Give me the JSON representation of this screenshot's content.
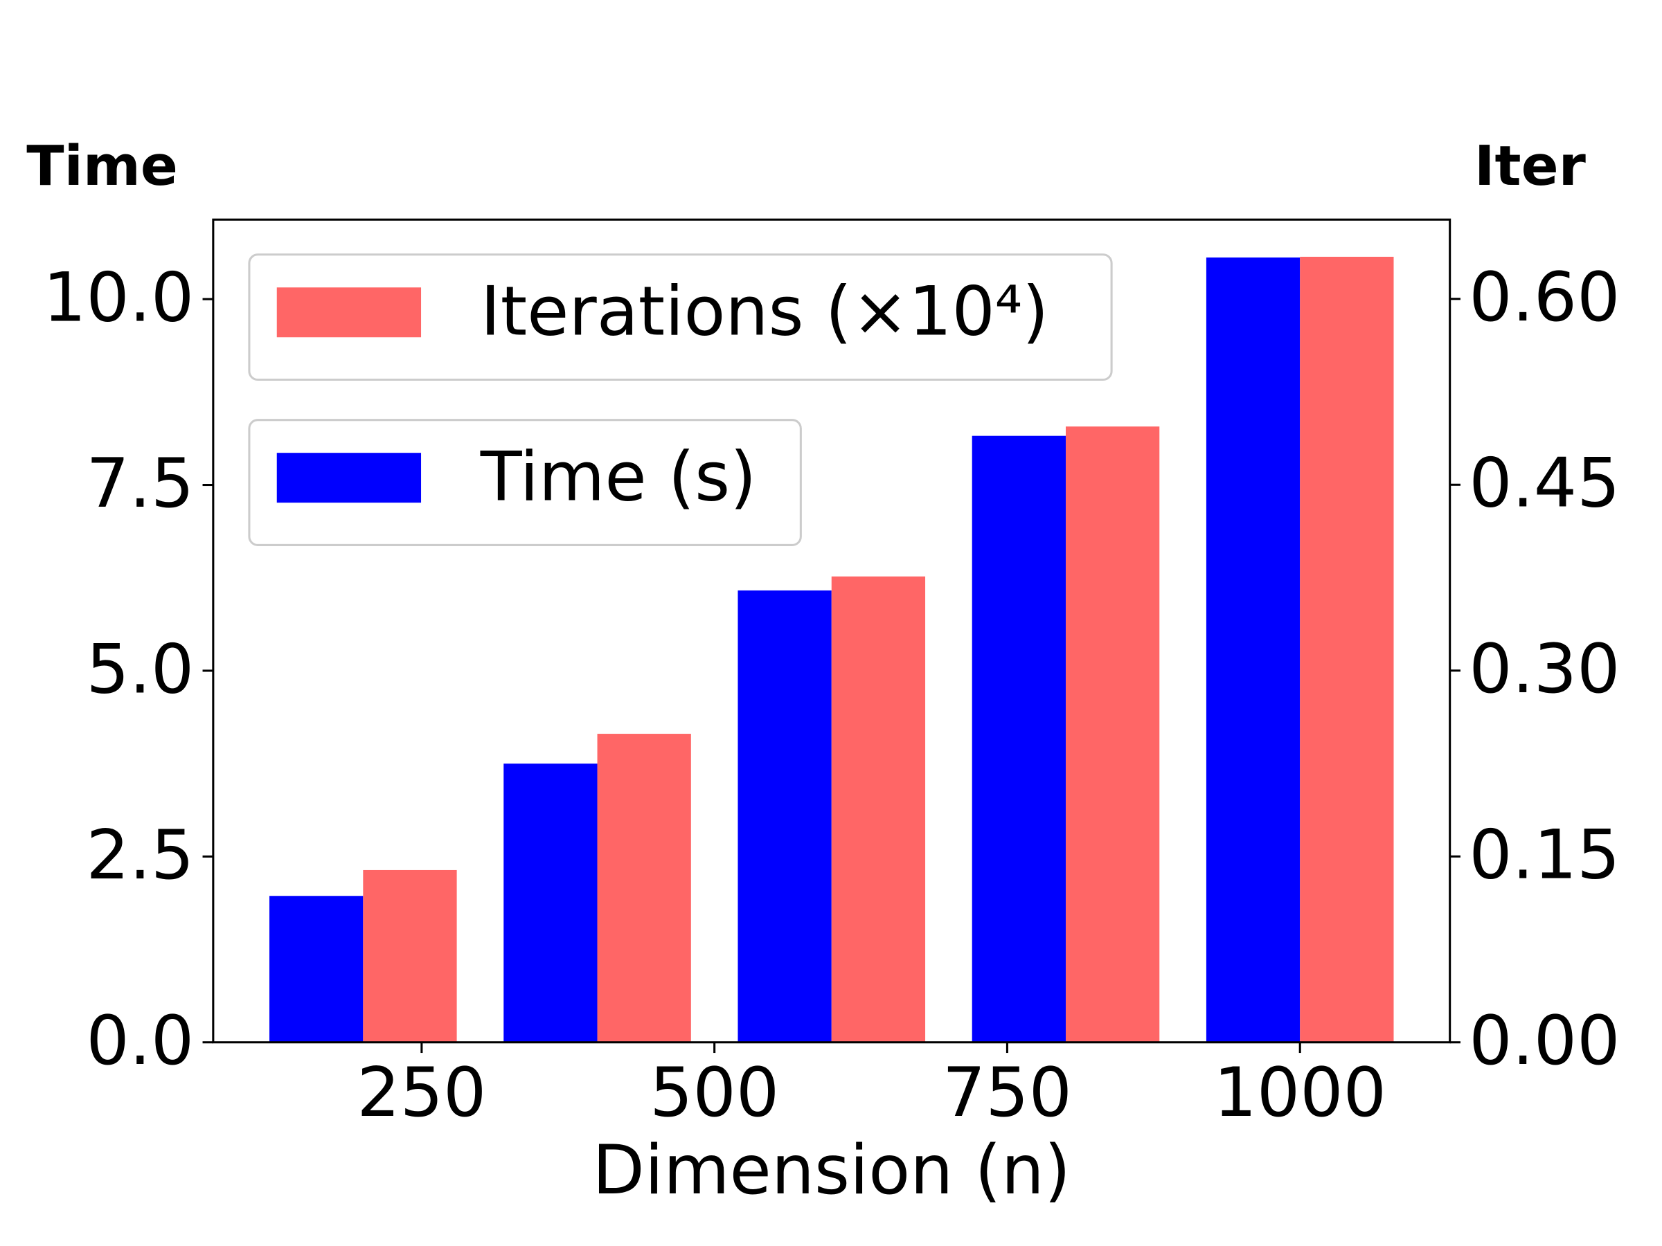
{
  "chart_data": {
    "type": "bar",
    "ylabel": "Time",
    "y2label": "Iter",
    "xlabel": "Dimension (n)",
    "x": [
      200,
      400,
      600,
      800,
      1000
    ],
    "series": [
      {
        "name": "Time (s)",
        "color": "#0000ff",
        "values": [
          1.97,
          3.75,
          6.08,
          8.16,
          10.56
        ]
      },
      {
        "name": "Iterations (×10⁴)",
        "color": "#ff6666",
        "axis": "y2",
        "values": [
          0.139,
          0.249,
          0.376,
          0.497,
          0.634
        ]
      }
    ],
    "xlim": [
      72,
      1128
    ],
    "xticks": [
      250,
      500,
      750,
      1000
    ],
    "ylim": [
      0,
      11.07
    ],
    "yticks": [
      {
        "value": 0,
        "label": "0.0"
      },
      {
        "value": 2.5,
        "label": "2.5"
      },
      {
        "value": 5,
        "label": "5.0"
      },
      {
        "value": 7.5,
        "label": "7.5"
      },
      {
        "value": 10,
        "label": "10.0"
      }
    ],
    "y2lim": [
      0,
      0.664
    ],
    "y2ticks": [
      {
        "value": 0,
        "label": "0.00"
      },
      {
        "value": 0.15,
        "label": "0.15"
      },
      {
        "value": 0.3,
        "label": "0.30"
      },
      {
        "value": 0.45,
        "label": "0.45"
      },
      {
        "value": 0.6,
        "label": "0.60"
      }
    ],
    "grid": false
  }
}
